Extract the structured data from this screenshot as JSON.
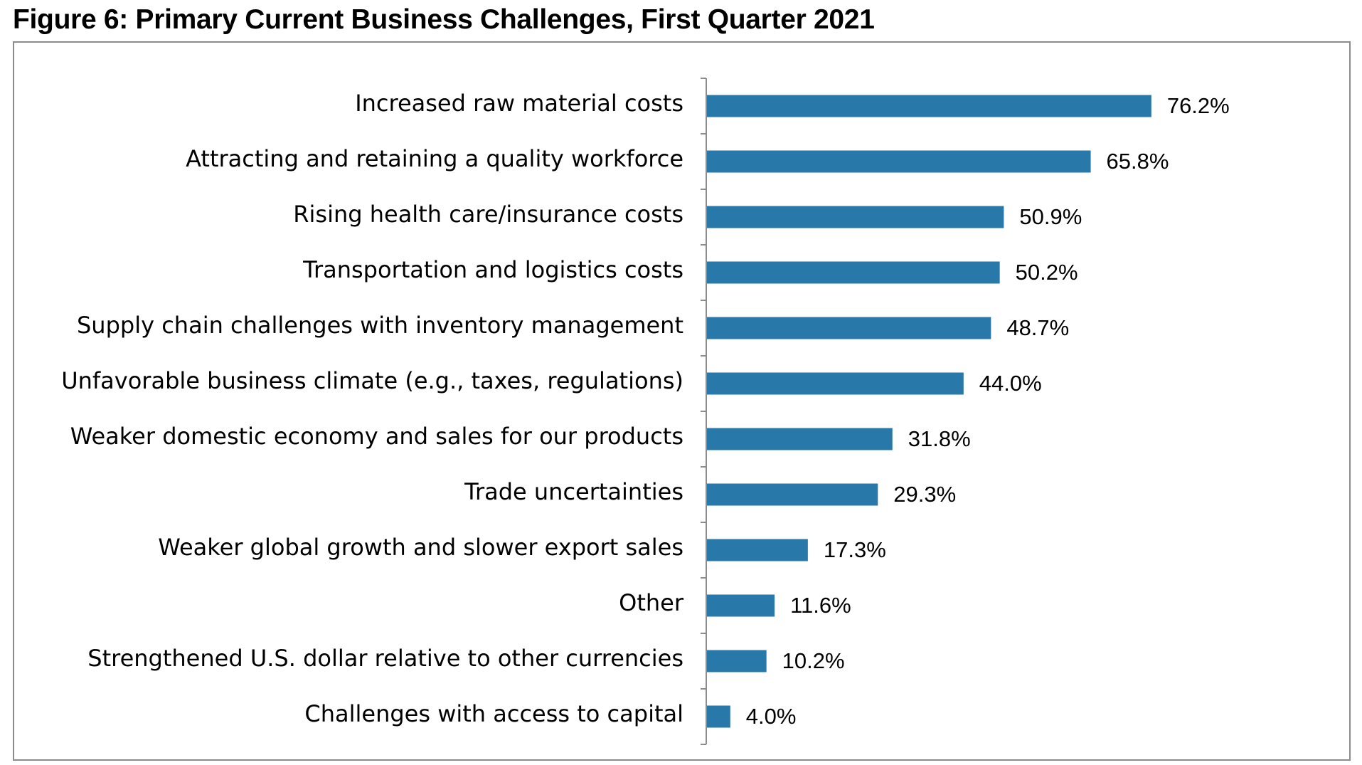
{
  "figure": {
    "title": "Figure 6: Primary Current Business Challenges, First Quarter 2021"
  },
  "chart_data": {
    "type": "bar",
    "orientation": "horizontal",
    "title": "",
    "xlabel": "",
    "ylabel": "",
    "xlim": [
      0,
      100
    ],
    "grid": false,
    "legend": "none",
    "bar_color": "#2878a9",
    "categories": [
      "Increased raw material costs",
      "Attracting and retaining a quality workforce",
      "Rising health care/insurance costs",
      "Transportation and logistics costs",
      "Supply chain challenges with inventory management",
      "Unfavorable business climate (e.g., taxes, regulations)",
      "Weaker domestic economy and sales for our products",
      "Trade uncertainties",
      "Weaker global growth and slower export sales",
      "Other",
      "Strengthened U.S. dollar relative to other currencies",
      "Challenges with access to capital"
    ],
    "values": [
      76.2,
      65.8,
      50.9,
      50.2,
      48.7,
      44.0,
      31.8,
      29.3,
      17.3,
      11.6,
      10.2,
      4.0
    ],
    "value_labels": [
      "76.2%",
      "65.8%",
      "50.9%",
      "50.2%",
      "48.7%",
      "44.0%",
      "31.8%",
      "29.3%",
      "17.3%",
      "11.6%",
      "10.2%",
      "4.0%"
    ]
  }
}
